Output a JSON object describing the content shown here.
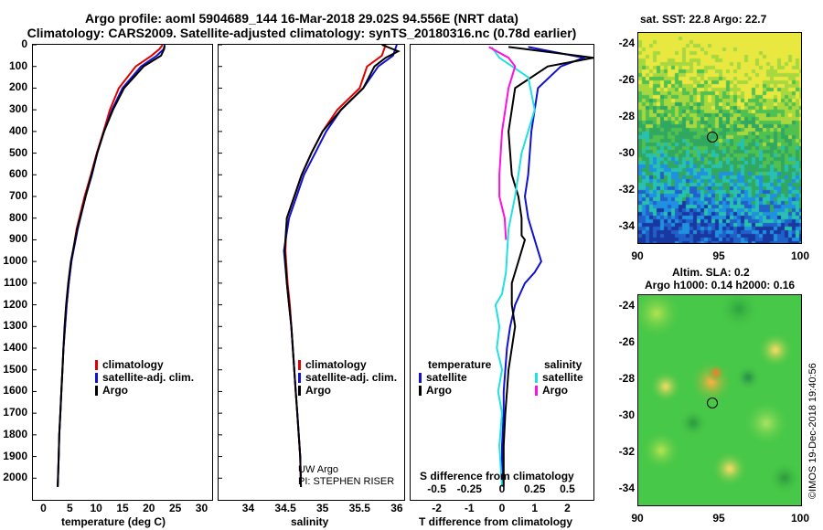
{
  "header": {
    "line1": "Argo profile: aoml 5904689_144 16-Mar-2018 29.02S 94.556E (NRT data)",
    "line2": "Climatology: CARS2009. Satellite-adjusted climatology: synTS_20180316.nc (0.78d earlier)"
  },
  "colors": {
    "climatology": "#e00000",
    "satellite": "#1010d0",
    "argo": "#000000",
    "sat_salinity": "#20e0e0",
    "argo_salinity": "#ff10e0"
  },
  "chart_data": [
    {
      "type": "line",
      "title": "",
      "xlabel": "temperature (deg C)",
      "ylabel": "",
      "xlim": [
        -2,
        32
      ],
      "ylim": [
        2100,
        0
      ],
      "xticks": [
        0,
        5,
        10,
        15,
        20,
        25,
        30
      ],
      "yticks": [
        0,
        100,
        200,
        300,
        400,
        500,
        600,
        700,
        800,
        900,
        1000,
        1100,
        1200,
        1300,
        1400,
        1500,
        1600,
        1700,
        1800,
        1900,
        2000
      ],
      "series": [
        {
          "name": "climatology",
          "color": "#e00000",
          "x": [
            22.6,
            22.0,
            20.5,
            17.5,
            14.3,
            12.6,
            11.4,
            10.1,
            9.0,
            7.8,
            6.3,
            5.3,
            4.8,
            4.4,
            4.1,
            3.8,
            3.6,
            3.4,
            3.2,
            3.0,
            2.9,
            2.7
          ],
          "y": [
            0,
            20,
            50,
            100,
            200,
            300,
            400,
            500,
            600,
            700,
            850,
            1000,
            1100,
            1200,
            1300,
            1400,
            1500,
            1600,
            1700,
            1800,
            1900,
            2040
          ]
        },
        {
          "name": "satellite-adj. clim.",
          "color": "#1010d0",
          "x": [
            23.0,
            22.8,
            21.5,
            18.5,
            15.0,
            13.0,
            11.5,
            10.2,
            9.2,
            8.0,
            6.5,
            5.3,
            4.8,
            4.4,
            4.1,
            3.8,
            3.6,
            3.4,
            3.2,
            3.0,
            2.9,
            2.7
          ],
          "y": [
            0,
            20,
            50,
            100,
            200,
            300,
            400,
            500,
            600,
            700,
            850,
            1000,
            1100,
            1200,
            1300,
            1400,
            1500,
            1600,
            1700,
            1800,
            1900,
            2040
          ]
        },
        {
          "name": "Argo",
          "color": "#000000",
          "x": [
            23.0,
            22.9,
            22.3,
            19.0,
            15.3,
            13.2,
            11.5,
            10.2,
            9.1,
            8.0,
            6.4,
            5.2,
            4.7,
            4.3,
            4.0,
            3.8,
            3.6,
            3.4,
            3.2,
            3.0,
            2.9,
            2.7
          ],
          "y": [
            5,
            20,
            50,
            100,
            200,
            300,
            400,
            500,
            600,
            700,
            850,
            1000,
            1100,
            1200,
            1300,
            1400,
            1500,
            1600,
            1700,
            1800,
            1900,
            2040
          ]
        }
      ]
    },
    {
      "type": "line",
      "title": "",
      "xlabel": "salinity",
      "ylabel": "",
      "xlim": [
        33.6,
        36.1
      ],
      "ylim": [
        2100,
        0
      ],
      "xticks": [
        34,
        34.5,
        35,
        35.5,
        36
      ],
      "annotations": [
        "UW Argo",
        "PI: STEPHEN RISER"
      ],
      "series": [
        {
          "name": "climatology",
          "color": "#e00000",
          "x": [
            35.85,
            35.8,
            35.6,
            35.5,
            35.2,
            35.0,
            34.85,
            34.72,
            34.62,
            34.52,
            34.5,
            34.53,
            34.56,
            34.58,
            34.6,
            34.62,
            34.64,
            34.66,
            34.68,
            34.7,
            34.71
          ],
          "y": [
            0,
            50,
            100,
            200,
            300,
            400,
            500,
            600,
            700,
            800,
            950,
            1100,
            1200,
            1300,
            1400,
            1500,
            1600,
            1700,
            1800,
            1900,
            2040
          ]
        },
        {
          "name": "satellite-adj. clim.",
          "color": "#1010d0",
          "x": [
            36.0,
            35.95,
            35.75,
            35.55,
            35.25,
            35.05,
            34.9,
            34.75,
            34.65,
            34.55,
            34.48,
            34.52,
            34.55,
            34.58,
            34.6,
            34.62,
            34.64,
            34.66,
            34.68,
            34.7,
            34.71
          ],
          "y": [
            0,
            50,
            100,
            200,
            300,
            400,
            500,
            600,
            700,
            800,
            950,
            1100,
            1200,
            1300,
            1400,
            1500,
            1600,
            1700,
            1800,
            1900,
            2040
          ]
        },
        {
          "name": "Argo",
          "color": "#000000",
          "x": [
            35.8,
            36.02,
            35.85,
            35.7,
            35.55,
            35.25,
            35.0,
            34.85,
            34.72,
            34.62,
            34.52,
            34.49,
            34.52,
            34.55,
            34.58,
            34.6,
            34.62,
            34.64,
            34.66,
            34.68,
            34.7,
            34.71
          ],
          "y": [
            0,
            30,
            60,
            100,
            200,
            300,
            400,
            500,
            600,
            700,
            800,
            950,
            1100,
            1200,
            1300,
            1400,
            1500,
            1600,
            1700,
            1800,
            1900,
            2040
          ]
        }
      ]
    },
    {
      "type": "line",
      "title": "",
      "xlabel": "T difference from climatology",
      "x2label": "S difference from climatology",
      "ylabel": "",
      "xlim": [
        -2.8,
        2.8
      ],
      "x2lim": [
        -0.7,
        0.7
      ],
      "ylim": [
        2100,
        0
      ],
      "xticks": [
        -2,
        -1,
        0,
        1,
        2
      ],
      "x2ticks": [
        "-0.5",
        "-0.25",
        "0",
        "0.25",
        "0.5"
      ],
      "series": [
        {
          "name": "T satellite",
          "color": "#1010d0",
          "x": [
            0.8,
            2.5,
            1.8,
            1.1,
            0.9,
            0.8,
            0.7,
            0.8,
            1.0,
            1.2,
            1.0,
            0.7,
            0.4,
            0.25,
            0.15,
            0.1,
            0.05,
            0.05,
            0.0,
            0.0
          ],
          "y": [
            10,
            60,
            100,
            200,
            400,
            600,
            700,
            800,
            900,
            1000,
            1050,
            1100,
            1200,
            1300,
            1400,
            1500,
            1600,
            1700,
            1850,
            2040
          ]
        },
        {
          "name": "T Argo",
          "color": "#000000",
          "x": [
            0.2,
            2.8,
            1.4,
            0.4,
            0.2,
            0.3,
            0.5,
            0.6,
            0.6,
            0.7,
            0.5,
            0.3,
            0.3,
            0.4,
            0.3,
            0.2,
            0.15,
            0.1,
            0.05,
            0.05
          ],
          "y": [
            10,
            60,
            100,
            200,
            400,
            600,
            700,
            800,
            880,
            900,
            1000,
            1100,
            1200,
            1300,
            1400,
            1500,
            1600,
            1700,
            1850,
            2040
          ]
        },
        {
          "name": "S satellite",
          "color": "#20e0e0",
          "x": [
            -0.08,
            -0.02,
            0.2,
            0.25,
            0.15,
            0.1,
            0.05,
            0.04,
            0.03,
            0.0,
            -0.05,
            -0.02,
            -0.04,
            0.0,
            -0.03,
            0.0,
            -0.02,
            0.0
          ],
          "y": [
            10,
            60,
            150,
            300,
            500,
            700,
            850,
            950,
            1050,
            1150,
            1200,
            1300,
            1400,
            1500,
            1600,
            1700,
            1850,
            2040
          ]
        },
        {
          "name": "S Argo",
          "color": "#ff10e0",
          "x": [
            -0.1,
            0.05,
            0.1,
            0.05,
            0.0,
            -0.02,
            -0.02,
            0.02,
            0.03
          ],
          "y": [
            10,
            60,
            100,
            200,
            400,
            600,
            700,
            800,
            900
          ]
        }
      ]
    }
  ],
  "plot1": {
    "legend": [
      "climatology",
      "satellite-adj. clim.",
      "Argo"
    ]
  },
  "plot2": {
    "legend": [
      "climatology",
      "satellite-adj. clim.",
      "Argo"
    ],
    "annot1": "UW Argo",
    "annot2": "PI: STEPHEN RISER"
  },
  "plot3": {
    "legend_title_t": "temperature",
    "legend_title_s": "salinity",
    "legend_t": [
      "satellite",
      "Argo"
    ],
    "legend_s": [
      "satellite",
      "Argo"
    ]
  },
  "maps": {
    "sst_title": "sat. SST: 22.8 Argo: 22.7",
    "sla_title_1": "Altim. SLA: 0.2",
    "sla_title_2": "Argo h1000: 0.14 h2000: 0.16",
    "lat_ticks": [
      "-24",
      "-26",
      "-28",
      "-30",
      "-32",
      "-34"
    ],
    "lon_ticks": [
      "90",
      "95",
      "100"
    ]
  },
  "credit": "©IMOS 19-Dec-2018 19:40:56"
}
